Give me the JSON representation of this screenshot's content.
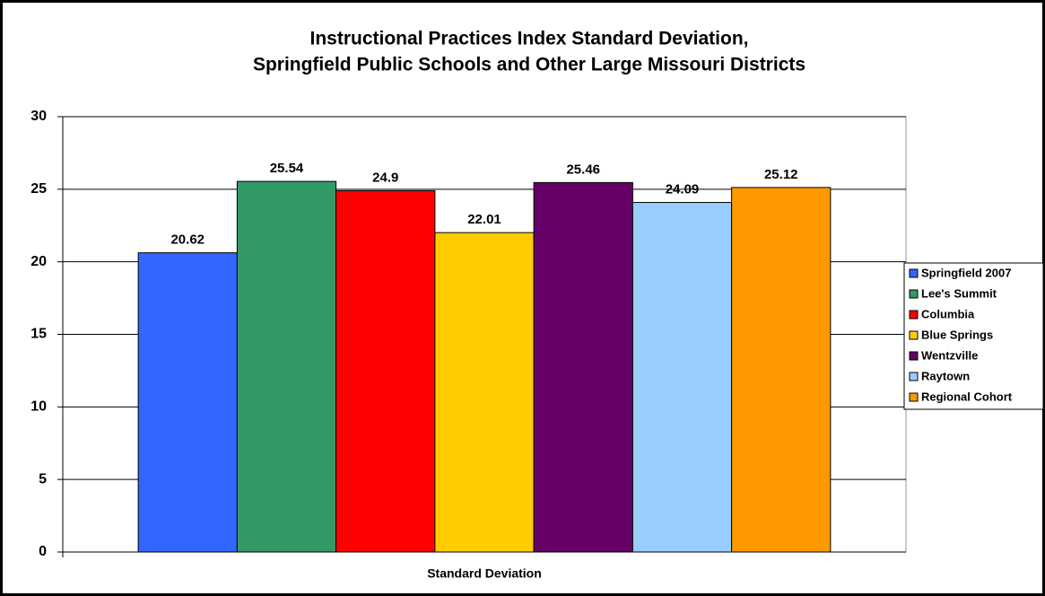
{
  "chart_data": {
    "type": "bar",
    "title": [
      "Instructional Practices Index Standard Deviation,",
      "Springfield Public Schools and Other Large Missouri Districts"
    ],
    "categories": [
      "Standard Deviation"
    ],
    "series": [
      {
        "name": "Springfield 2007",
        "color": "#3366ff",
        "values": [
          20.62
        ]
      },
      {
        "name": "Lee's Summit",
        "color": "#339966",
        "values": [
          25.54
        ]
      },
      {
        "name": "Columbia",
        "color": "#ff0000",
        "values": [
          24.9
        ]
      },
      {
        "name": "Blue Springs",
        "color": "#ffcc00",
        "values": [
          22.01
        ]
      },
      {
        "name": "Wentzville",
        "color": "#660066",
        "values": [
          25.46
        ]
      },
      {
        "name": "Raytown",
        "color": "#99ccff",
        "values": [
          24.09
        ]
      },
      {
        "name": "Regional Cohort",
        "color": "#ff9900",
        "values": [
          25.12
        ]
      }
    ],
    "ylim": [
      0,
      30
    ],
    "yticks": [
      0,
      5,
      10,
      15,
      20,
      25,
      30
    ],
    "grid": true,
    "legend": "right"
  }
}
